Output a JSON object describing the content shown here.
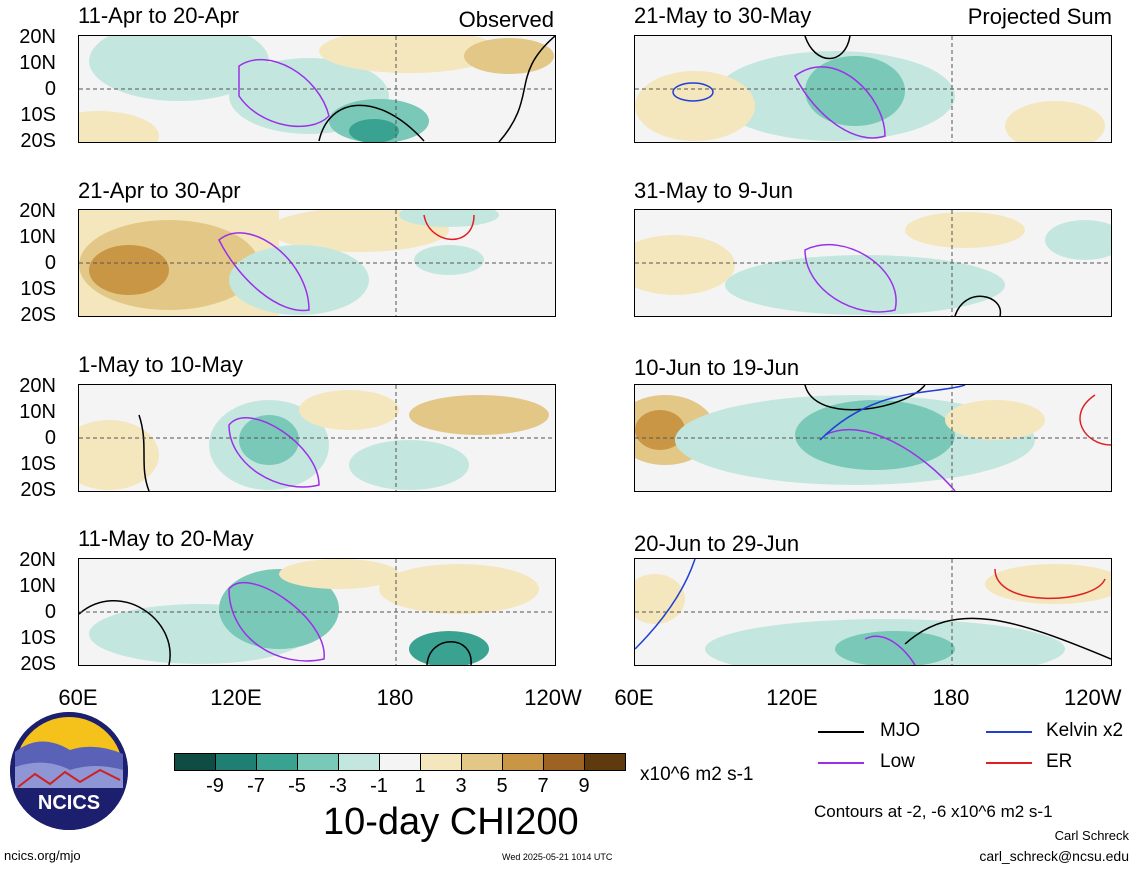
{
  "left_tag": "Observed",
  "right_tag": "Projected Sum",
  "panels_left": [
    {
      "title": "11-Apr to 20-Apr"
    },
    {
      "title": "21-Apr to 30-Apr"
    },
    {
      "title": "1-May to 10-May"
    },
    {
      "title": "11-May to 20-May"
    }
  ],
  "panels_right": [
    {
      "title": "21-May to 30-May"
    },
    {
      "title": "31-May to 9-Jun"
    },
    {
      "title": "10-Jun to 19-Jun"
    },
    {
      "title": "20-Jun to 29-Jun"
    }
  ],
  "lat_labels": [
    "20N",
    "10N",
    "0",
    "10S",
    "20S"
  ],
  "lon_labels_left": [
    "60E",
    "120E",
    "180",
    "120W"
  ],
  "lon_labels_right": [
    "60E",
    "120E",
    "180",
    "120W"
  ],
  "colorbar": {
    "colors": [
      "#0f4d44",
      "#1f7f72",
      "#3aa291",
      "#79c8b8",
      "#c3e7df",
      "#f4f4f4",
      "#f4e6bd",
      "#e2c786",
      "#c99645",
      "#9c6322",
      "#5e3a0e"
    ],
    "labels": [
      "-9",
      "-7",
      "-5",
      "-3",
      "-1",
      "1",
      "3",
      "5",
      "7",
      "9"
    ],
    "units": "x10^6 m2 s-1"
  },
  "title": "10-day CHI200",
  "legend": [
    {
      "label": "MJO",
      "color": "#000000"
    },
    {
      "label": "Kelvin x2",
      "color": "#1f3fd6"
    },
    {
      "label": "Low",
      "color": "#9b30e8"
    },
    {
      "label": "ER",
      "color": "#e02020"
    }
  ],
  "contour_note": "Contours at -2, -6 x10^6 m2 s-1",
  "author": "Carl Schreck",
  "email": "carl_schreck@ncsu.edu",
  "site": "ncics.org/mjo",
  "timestamp": "Wed 2025-05-21 1014 UTC",
  "logo_text": "NCICS"
}
